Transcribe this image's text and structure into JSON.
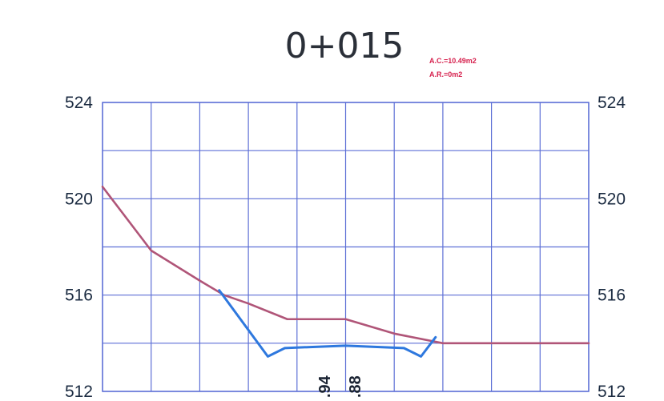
{
  "page": {
    "title": "0+015",
    "notes": [
      "A.C.=10.49m2",
      "A.R.=0m2"
    ]
  },
  "chart_data": {
    "type": "line",
    "title": "0+015",
    "xlabel": "",
    "ylabel": "",
    "xlim": [
      0,
      10
    ],
    "ylim": [
      512,
      524
    ],
    "grid": true,
    "y_ticks": [
      524,
      520,
      516,
      512
    ],
    "y_ticks_right": [
      524,
      520,
      516,
      512
    ],
    "annotations": [
      "A.C.=10.49m2",
      "A.R.=0m2"
    ],
    "bottom_labels": [
      ".94",
      ".88"
    ],
    "series": [
      {
        "color": "#b05578",
        "x": [
          0,
          1,
          2,
          2.5,
          3,
          3.8,
          5,
          6,
          7,
          10
        ],
        "y": [
          520.5,
          517.85,
          516.6,
          516,
          515.65,
          515,
          515,
          514.4,
          514,
          514
        ]
      },
      {
        "color": "#2e78de",
        "x": [
          2.4,
          3.4,
          3.75,
          5,
          6.2,
          6.55,
          6.85
        ],
        "y": [
          516.2,
          513.45,
          513.8,
          513.9,
          513.8,
          513.45,
          514.25
        ]
      }
    ]
  }
}
